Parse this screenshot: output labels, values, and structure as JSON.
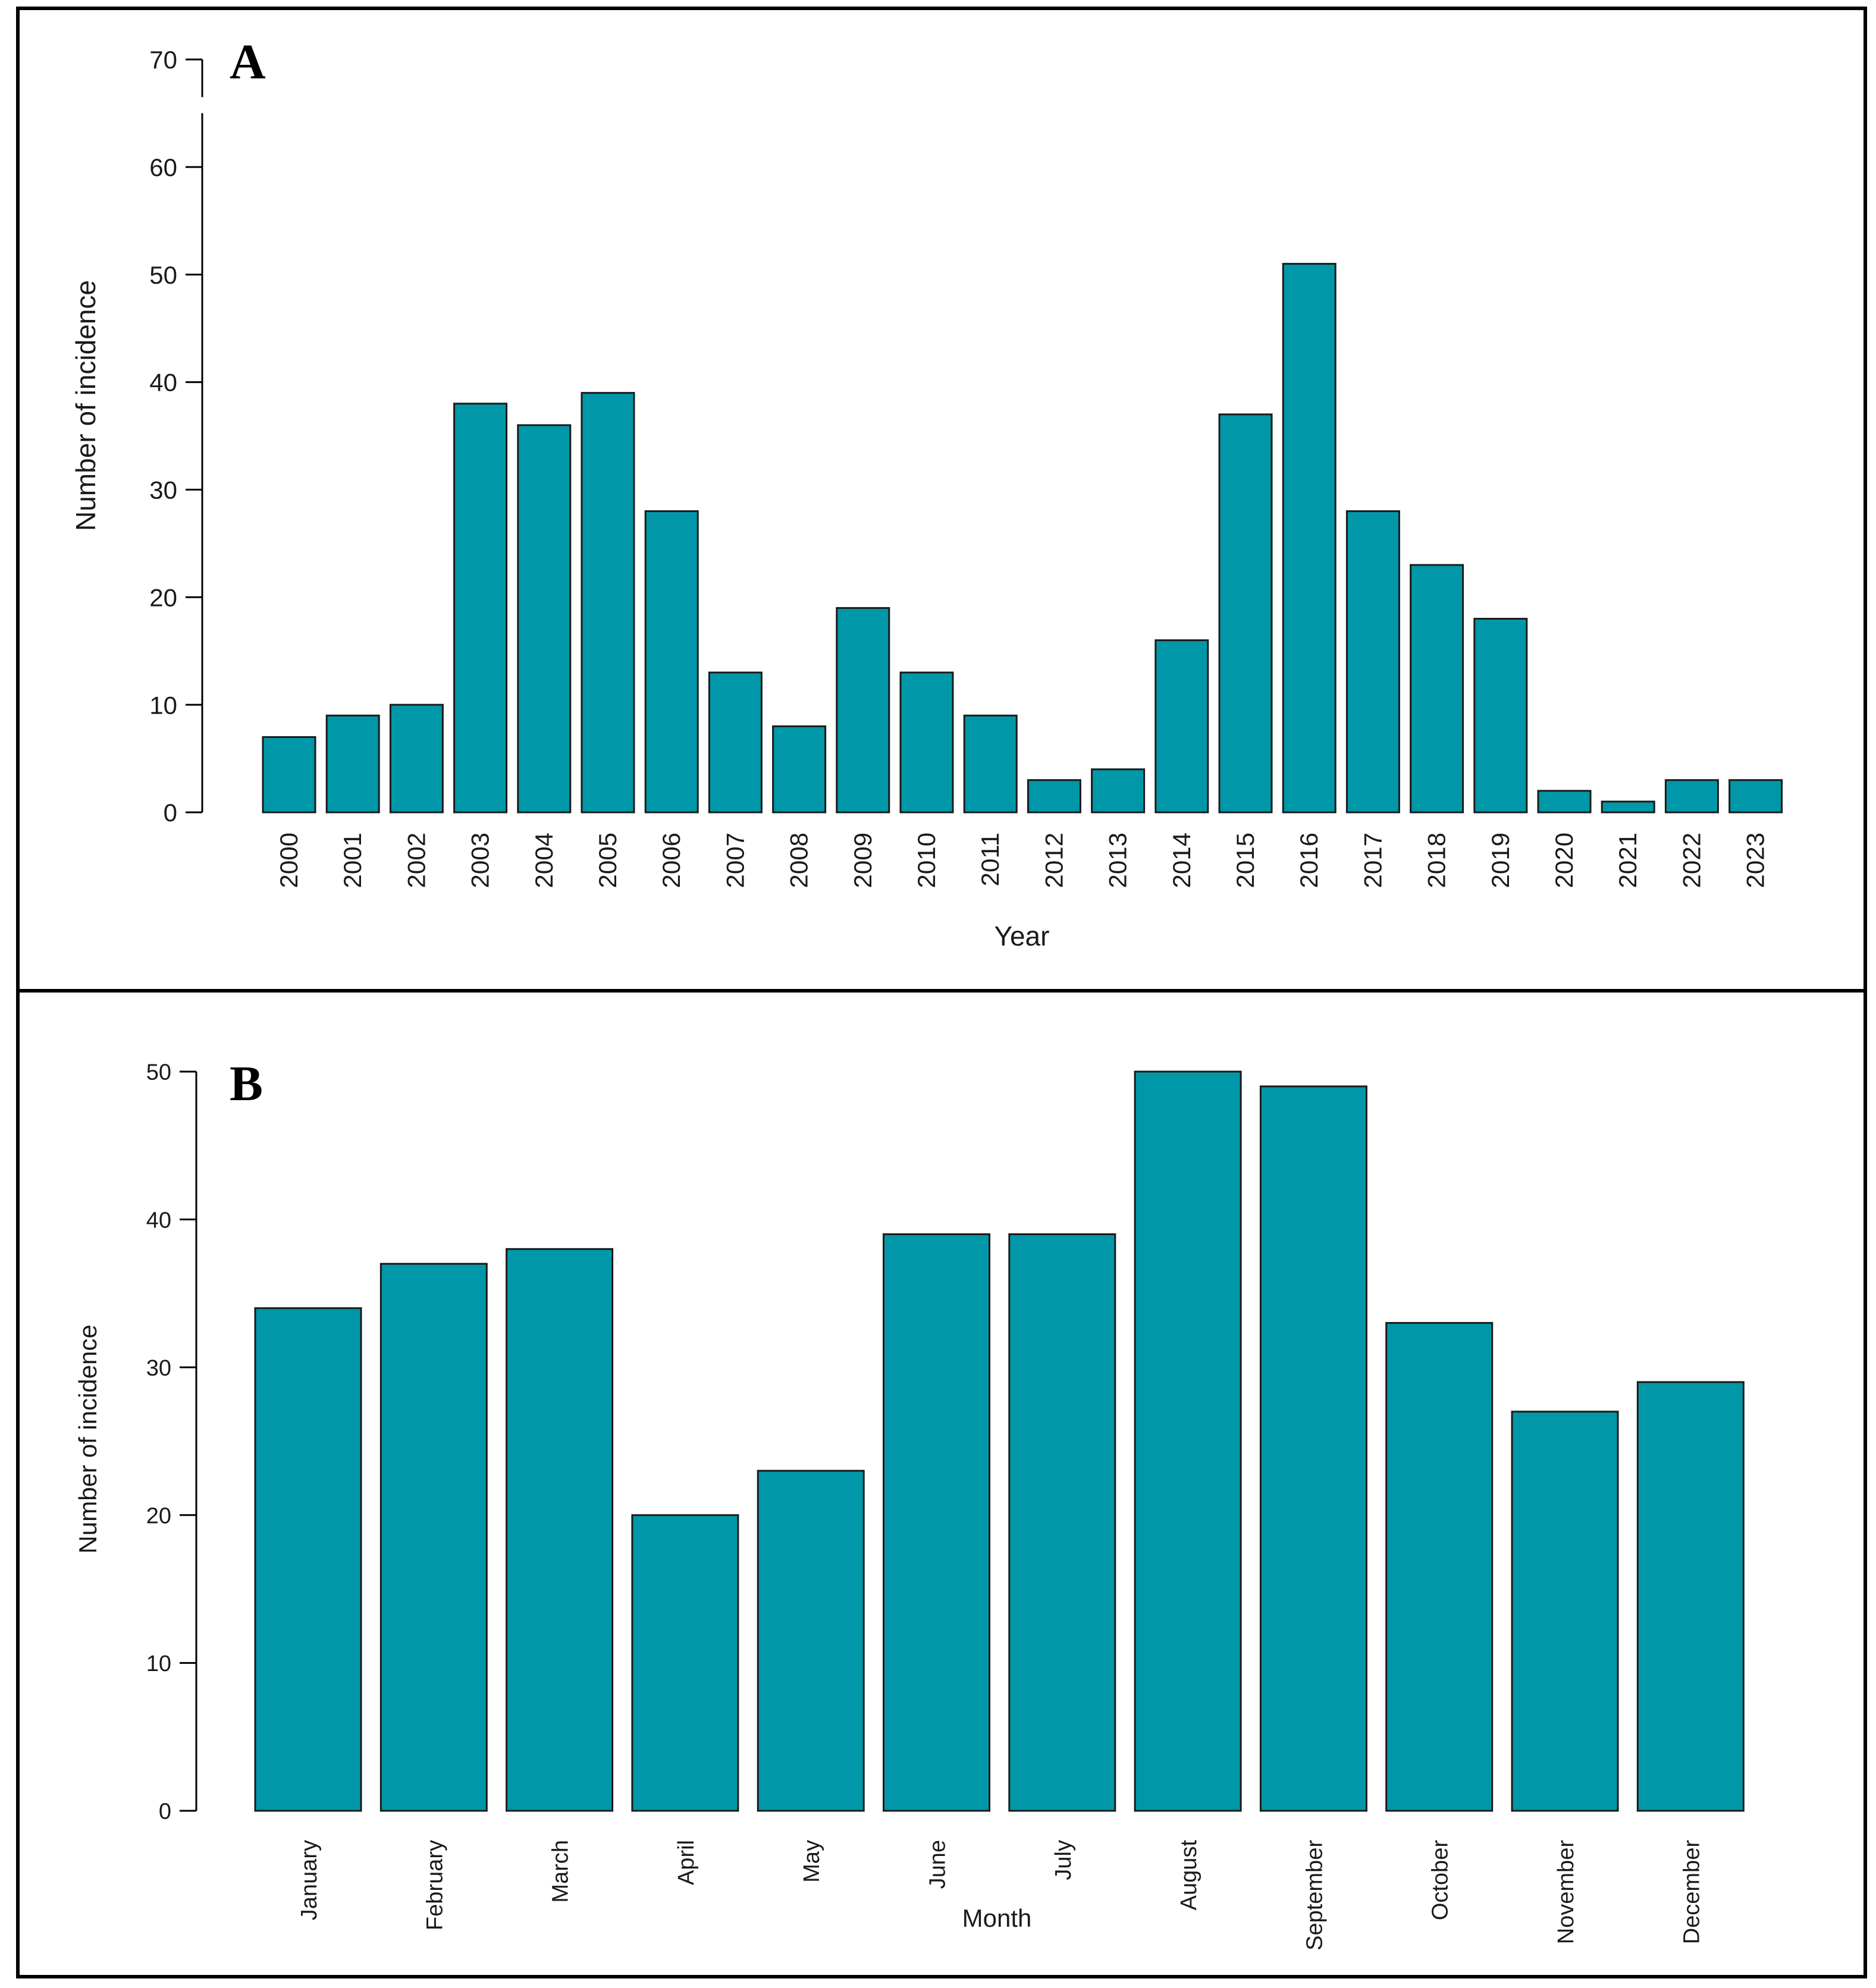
{
  "colors": {
    "bar_fill": "#0098a8",
    "bar_stroke": "#1a1a1a",
    "frame": "#000000",
    "text": "#1a1a1a"
  },
  "chart_data": [
    {
      "type": "bar",
      "panel_label": "A",
      "xlabel": "Year",
      "ylabel": "Number of incidence",
      "ylim": [
        0,
        70
      ],
      "yticks": [
        "0",
        "10",
        "20",
        "30",
        "40",
        "50",
        "60",
        "70"
      ],
      "categories": [
        "2000",
        "2001",
        "2002",
        "2003",
        "2004",
        "2005",
        "2006",
        "2007",
        "2008",
        "2009",
        "2010",
        "2011",
        "2012",
        "2013",
        "2014",
        "2015",
        "2016",
        "2017",
        "2018",
        "2019",
        "2020",
        "2021",
        "2022",
        "2023"
      ],
      "values": [
        7,
        9,
        10,
        38,
        36,
        39,
        28,
        13,
        8,
        19,
        13,
        9,
        3,
        4,
        16,
        37,
        51,
        28,
        23,
        18,
        2,
        1,
        3,
        3
      ]
    },
    {
      "type": "bar",
      "panel_label": "B",
      "xlabel": "Month",
      "ylabel": "Number of incidence",
      "ylim": [
        0,
        50
      ],
      "yticks": [
        "0",
        "10",
        "20",
        "30",
        "40",
        "50"
      ],
      "categories": [
        "January",
        "February",
        "March",
        "April",
        "May",
        "June",
        "July",
        "August",
        "September",
        "October",
        "November",
        "December"
      ],
      "values": [
        34,
        37,
        38,
        20,
        23,
        39,
        39,
        50,
        49,
        33,
        27,
        29
      ]
    }
  ]
}
